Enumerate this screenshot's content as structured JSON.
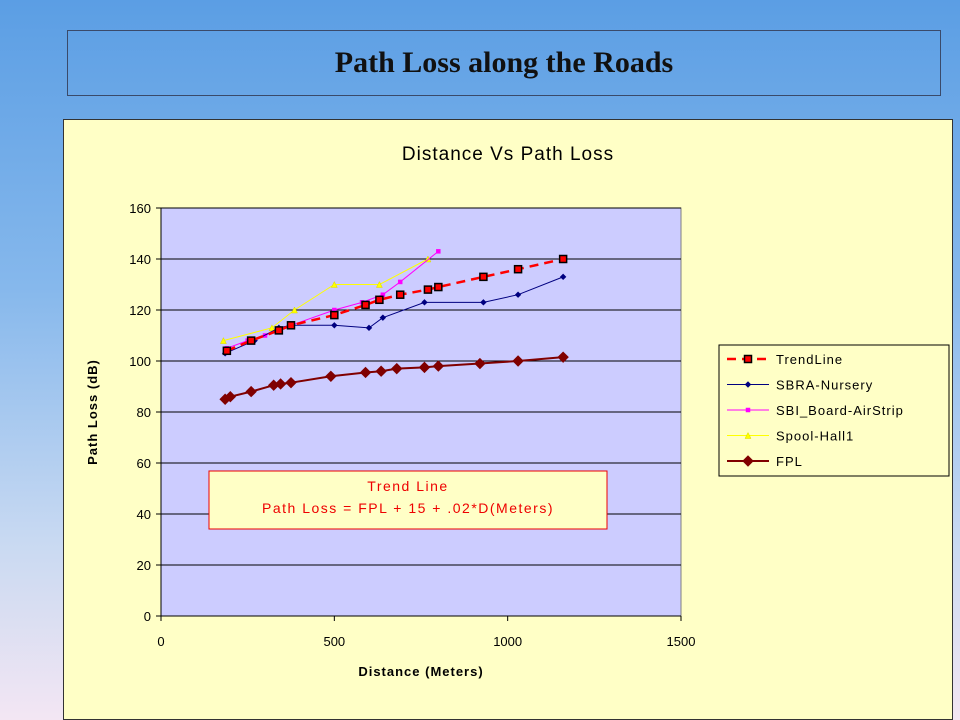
{
  "slide": {
    "title": "Path Loss along the Roads"
  },
  "chart_data": {
    "type": "line",
    "title": "Distance Vs Path Loss",
    "xlabel": "Distance (Meters)",
    "ylabel": "Path Loss (dB)",
    "xlim": [
      0,
      1500
    ],
    "ylim": [
      0,
      160
    ],
    "x_ticks": [
      0,
      500,
      1000,
      1500
    ],
    "y_ticks": [
      0,
      20,
      40,
      60,
      80,
      100,
      120,
      140,
      160
    ],
    "plot_background": "#ccccff",
    "grid": "horizontal",
    "legend_position": "right",
    "series": [
      {
        "name": "TrendLine",
        "color": "#ff0000",
        "style": "dashed",
        "marker": "square",
        "points": [
          [
            190,
            104
          ],
          [
            260,
            108
          ],
          [
            340,
            112
          ],
          [
            375,
            114
          ],
          [
            500,
            118
          ],
          [
            590,
            122
          ],
          [
            630,
            124
          ],
          [
            690,
            126
          ],
          [
            770,
            128
          ],
          [
            800,
            129
          ],
          [
            930,
            133
          ],
          [
            1030,
            136
          ],
          [
            1160,
            140
          ]
        ]
      },
      {
        "name": "SBRA-Nursery",
        "color": "#000080",
        "style": "solid",
        "marker": "diamond",
        "points": [
          [
            185,
            103
          ],
          [
            270,
            108
          ],
          [
            340,
            113
          ],
          [
            375,
            114
          ],
          [
            500,
            114
          ],
          [
            600,
            113
          ],
          [
            640,
            117
          ],
          [
            760,
            123
          ],
          [
            930,
            123
          ],
          [
            1030,
            126
          ],
          [
            1160,
            133
          ]
        ]
      },
      {
        "name": "SBI_Board-AirStrip",
        "color": "#ff00ff",
        "style": "solid",
        "marker": "square",
        "points": [
          [
            190,
            105
          ],
          [
            250,
            108
          ],
          [
            300,
            110
          ],
          [
            375,
            114
          ],
          [
            500,
            120
          ],
          [
            580,
            123
          ],
          [
            640,
            126
          ],
          [
            690,
            131
          ],
          [
            800,
            143
          ]
        ]
      },
      {
        "name": "Spool-Hall1",
        "color": "#ffff00",
        "style": "solid",
        "marker": "triangle",
        "points": [
          [
            180,
            108
          ],
          [
            320,
            113
          ],
          [
            385,
            120
          ],
          [
            500,
            130
          ],
          [
            630,
            130
          ],
          [
            770,
            140
          ]
        ]
      },
      {
        "name": "FPL",
        "color": "#800000",
        "style": "solid",
        "marker": "diamond",
        "points": [
          [
            185,
            85
          ],
          [
            200,
            86
          ],
          [
            260,
            88
          ],
          [
            325,
            90.5
          ],
          [
            345,
            91
          ],
          [
            375,
            91.5
          ],
          [
            490,
            94
          ],
          [
            590,
            95.5
          ],
          [
            635,
            96
          ],
          [
            680,
            97
          ],
          [
            760,
            97.5
          ],
          [
            800,
            98
          ],
          [
            920,
            99
          ],
          [
            1030,
            100
          ],
          [
            1160,
            101.5
          ]
        ]
      }
    ],
    "annotation": {
      "line1": "Trend Line",
      "line2": "Path Loss = FPL + 15 + .02*D(Meters)"
    }
  }
}
